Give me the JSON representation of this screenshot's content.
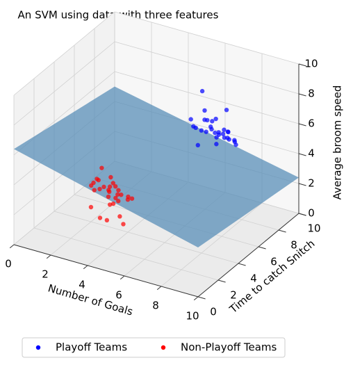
{
  "chart_data": {
    "type": "scatter3d",
    "title": "An SVM using data with three features",
    "xlabel": "Number of Goals",
    "ylabel": "Time to catch Snitch",
    "zlabel": "Average broom speed",
    "xlim": [
      0,
      10
    ],
    "ylim": [
      0,
      10
    ],
    "zlim": [
      0,
      10
    ],
    "xticks": [
      0,
      2,
      4,
      6,
      8,
      10
    ],
    "yticks": [
      0,
      2,
      4,
      6,
      8,
      10
    ],
    "zticks": [
      0,
      2,
      4,
      6,
      8,
      10
    ],
    "grid": true,
    "legend": "lower center",
    "plane": {
      "color": "#5a8fb8",
      "x": [
        0,
        10,
        10,
        0
      ],
      "y": [
        0,
        0,
        10,
        10
      ],
      "z": [
        6.4,
        3.3,
        2.4,
        5.0
      ]
    },
    "series": [
      {
        "name": "Playoff Teams",
        "color": "#0000ff",
        "x": [
          7.2,
          6.5,
          7.8,
          6.9,
          7.4,
          6.1,
          8.0,
          7.0,
          6.7,
          7.6,
          6.3,
          7.9,
          7.1,
          6.8,
          7.3,
          6.0,
          8.2,
          7.5,
          6.6,
          7.7,
          6.9,
          7.2,
          6.4,
          8.1,
          7.0,
          6.2,
          7.4,
          7.8,
          6.8,
          7.3
        ],
        "y": [
          6.8,
          7.2,
          6.5,
          7.5,
          6.1,
          6.9,
          7.3,
          6.4,
          7.8,
          7.0,
          6.3,
          7.6,
          6.7,
          7.1,
          7.9,
          6.6,
          6.9,
          7.4,
          6.2,
          7.2,
          6.0,
          7.7,
          7.0,
          6.4,
          7.3,
          7.6,
          6.8,
          7.1,
          6.5,
          7.0
        ],
        "z": [
          6.2,
          5.8,
          6.5,
          5.4,
          6.9,
          6.1,
          5.6,
          7.2,
          6.4,
          5.9,
          6.6,
          5.2,
          7.0,
          6.3,
          5.7,
          6.8,
          6.0,
          7.5,
          5.5,
          6.2,
          6.7,
          5.9,
          8.6,
          6.4,
          5.1,
          6.9,
          6.3,
          5.8,
          7.1,
          6.0
        ]
      },
      {
        "name": "Non-Playoff Teams",
        "color": "#ff0000",
        "x": [
          3.5,
          2.8,
          4.2,
          3.1,
          3.9,
          2.5,
          4.5,
          3.3,
          3.7,
          2.9,
          4.0,
          3.2,
          3.6,
          2.7,
          4.3,
          3.0,
          3.8,
          3.4,
          2.6,
          4.1,
          3.5,
          2.9,
          4.4,
          3.2,
          3.6,
          3.9,
          2.8,
          3.3,
          4.6,
          3.7
        ],
        "y": [
          3.0,
          3.4,
          2.7,
          3.8,
          2.4,
          3.1,
          3.5,
          2.9,
          3.6,
          2.6,
          3.2,
          4.0,
          2.8,
          3.3,
          3.0,
          2.5,
          3.7,
          3.4,
          2.9,
          2.6,
          3.9,
          3.1,
          3.3,
          2.7,
          3.5,
          2.4,
          3.6,
          3.2,
          2.9,
          3.1
        ],
        "z": [
          3.2,
          2.8,
          3.6,
          2.5,
          3.9,
          3.1,
          2.7,
          3.4,
          2.2,
          3.7,
          1.5,
          3.0,
          2.9,
          3.5,
          1.2,
          3.3,
          2.6,
          3.8,
          1.8,
          3.1,
          2.4,
          3.6,
          2.9,
          1.4,
          3.2,
          2.7,
          4.1,
          1.0,
          3.0,
          2.3
        ]
      }
    ]
  }
}
